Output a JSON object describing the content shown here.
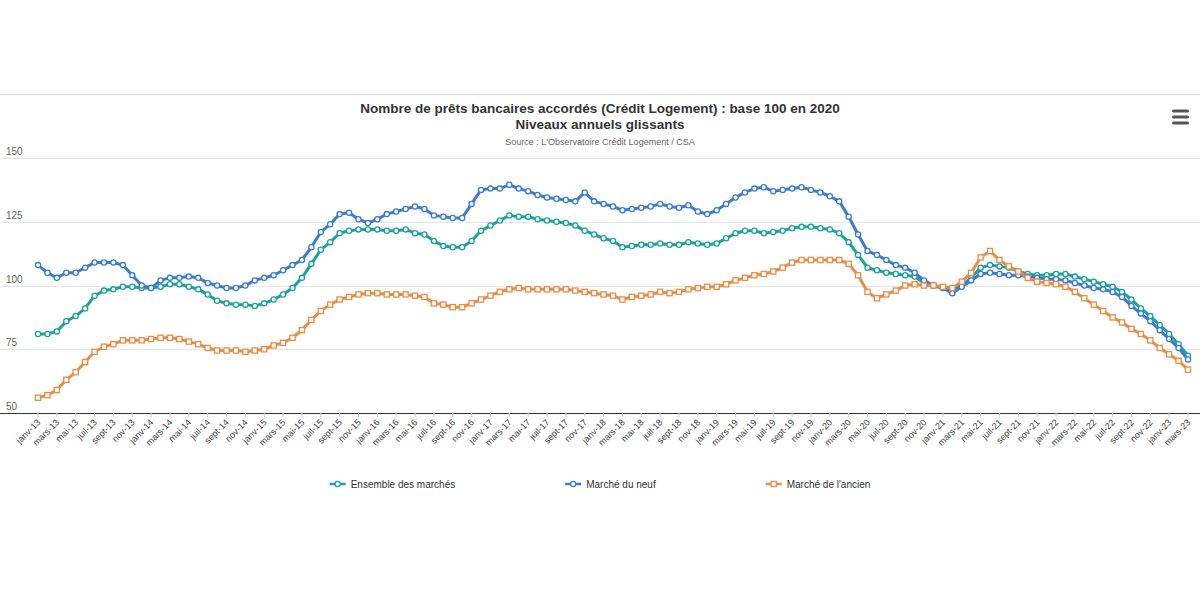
{
  "chart_data": {
    "type": "line",
    "title": "Nombre de prêts bancaires accordés (Crédit Logement) : base 100 en 2020",
    "subtitle": "Niveaux annuels glissants",
    "source": "Source : L'Observatoire Crédit Logement / CSA",
    "categories": [
      "janv-13",
      null,
      "mars-13",
      null,
      "mai-13",
      null,
      "juil-13",
      null,
      "sept-13",
      null,
      "nov-13",
      null,
      "janv-14",
      null,
      "mars-14",
      null,
      "mai-14",
      null,
      "juil-14",
      null,
      "sept-14",
      null,
      "nov-14",
      null,
      "janv-15",
      null,
      "mars-15",
      null,
      "mai-15",
      null,
      "juil-15",
      null,
      "sept-15",
      null,
      "nov-15",
      null,
      "janv-16",
      null,
      "mars-16",
      null,
      "mai-16",
      null,
      "juil-16",
      null,
      "sept-16",
      null,
      "nov-16",
      null,
      "janv-17",
      null,
      "mars-17",
      null,
      "mai-17",
      null,
      "juil-17",
      null,
      "sept-17",
      null,
      "nov-17",
      null,
      "janv-18",
      null,
      "mars-18",
      null,
      "mai-18",
      null,
      "juil-18",
      null,
      "sept-18",
      null,
      "nov-18",
      null,
      "janv-19",
      null,
      "mars-19",
      null,
      "mai-19",
      null,
      "juil-19",
      null,
      "sept-19",
      null,
      "nov-19",
      null,
      "janv-20",
      null,
      "mars-20",
      null,
      "mai-20",
      null,
      "juil-20",
      null,
      "sept-20",
      null,
      "nov-20",
      null,
      "janv-21",
      null,
      "mars-21",
      null,
      "mai-21",
      null,
      "juil-21",
      null,
      "sept-21",
      null,
      "nov-21",
      null,
      "janv-22",
      null,
      "mars-22",
      null,
      "mai-22",
      null,
      "juil-22",
      null,
      "sept-22",
      null,
      "nov-22",
      null,
      "janv-23",
      null,
      "mars-23"
    ],
    "series": [
      {
        "name": "Ensemble des marchés",
        "color": "#1aa39a",
        "marker": "circle",
        "values": [
          81,
          81,
          82,
          86,
          88,
          91,
          96,
          98,
          98.5,
          99.5,
          99.5,
          99,
          99,
          99.5,
          100.5,
          100.5,
          99.5,
          98.5,
          96.5,
          94,
          93,
          92.5,
          92.5,
          92,
          93,
          94.5,
          96.5,
          99,
          103,
          108.5,
          114,
          117,
          120.5,
          121.5,
          122,
          122,
          122,
          121.5,
          121.5,
          122,
          120.5,
          120,
          117.5,
          115.5,
          115,
          115,
          117.5,
          121.5,
          123.5,
          125.5,
          127.5,
          127,
          127,
          126,
          125.5,
          125,
          124.5,
          123.5,
          121.5,
          120,
          118.5,
          117.5,
          115,
          115.5,
          116,
          116,
          116.5,
          116,
          116,
          117,
          116.5,
          116,
          116.5,
          118.5,
          120.5,
          121.5,
          121.5,
          120.5,
          121,
          121.5,
          122.5,
          123,
          123,
          122.5,
          122,
          120.5,
          117,
          112,
          107,
          106,
          105,
          104.5,
          104,
          103.5,
          101,
          100,
          99,
          98.5,
          100,
          103,
          107,
          108,
          107.5,
          107,
          105.5,
          104.5,
          104,
          104,
          104.5,
          104.5,
          103.5,
          102.5,
          101.5,
          100.5,
          99.5,
          97.5,
          94.5,
          91,
          88,
          84.5,
          81,
          77,
          72.5
        ]
      },
      {
        "name": "Marché du neuf",
        "color": "#3a7bd5",
        "marker": "circle",
        "values": [
          108,
          105,
          103,
          105,
          105,
          107,
          109,
          109,
          109,
          108,
          104,
          100,
          99,
          102,
          103,
          103,
          103.5,
          103,
          101,
          100,
          99,
          99,
          100,
          102,
          103,
          104,
          106,
          108,
          110,
          115,
          121,
          124,
          128,
          128.5,
          126,
          124.5,
          126,
          128,
          129,
          130,
          131,
          130,
          127.5,
          127,
          126.5,
          126.5,
          132,
          137.5,
          138,
          138,
          139.5,
          138,
          137,
          135.5,
          134.5,
          134,
          133.5,
          133,
          136.5,
          133,
          132,
          131,
          129.5,
          130,
          130.5,
          131,
          132,
          131,
          130.5,
          131.5,
          129,
          128,
          129.5,
          132,
          134.5,
          136.5,
          138,
          138.5,
          137,
          137.5,
          138,
          138.5,
          137.5,
          136.5,
          135,
          133,
          127,
          120,
          113.5,
          112,
          110,
          108,
          107,
          105,
          102,
          100,
          99,
          97,
          99.5,
          102,
          104.5,
          105,
          104.5,
          104,
          104,
          103.5,
          103,
          102.5,
          102.5,
          102,
          101,
          100,
          99,
          98.5,
          97.5,
          95.5,
          92,
          89,
          86,
          82.5,
          79,
          75.5,
          71
        ]
      },
      {
        "name": "Marché de l'ancien",
        "color": "#ec8b43",
        "marker": "square",
        "values": [
          56,
          57,
          59,
          63,
          66,
          70,
          74,
          76,
          77,
          78.5,
          78.5,
          78.5,
          79,
          79.5,
          79.5,
          79,
          78,
          77,
          75.5,
          74.5,
          74.5,
          74.5,
          74,
          74.5,
          75,
          76.5,
          77.5,
          79.5,
          82.5,
          86.5,
          90,
          92.5,
          94.5,
          95.5,
          96.5,
          97,
          97,
          96.5,
          96.5,
          96.5,
          96,
          95.5,
          93,
          92.5,
          91.5,
          91.5,
          93,
          94.5,
          96,
          97.5,
          98.5,
          99,
          98.5,
          98.5,
          98.5,
          98.5,
          98.5,
          98,
          97.5,
          97,
          96.5,
          96,
          94.5,
          95.5,
          96,
          96.5,
          97.5,
          97,
          97.5,
          98.5,
          99,
          99.5,
          99.5,
          100.5,
          102,
          103,
          104,
          104.5,
          105.5,
          107,
          109,
          110,
          110,
          110,
          110,
          110,
          108.5,
          104,
          97.5,
          95,
          96.5,
          98,
          100,
          100.5,
          100,
          100,
          99.5,
          99,
          101.5,
          105,
          111,
          113.5,
          110,
          107.5,
          105.5,
          103,
          101.5,
          101,
          100.5,
          99.5,
          97.5,
          95,
          92.5,
          90,
          87.5,
          85.5,
          83,
          81,
          78.5,
          75.5,
          73,
          70.5,
          67
        ]
      }
    ],
    "ylim": [
      50,
      150
    ],
    "yticks": [
      50,
      75,
      100,
      125,
      150
    ],
    "grid": true,
    "legend": "bottom"
  }
}
